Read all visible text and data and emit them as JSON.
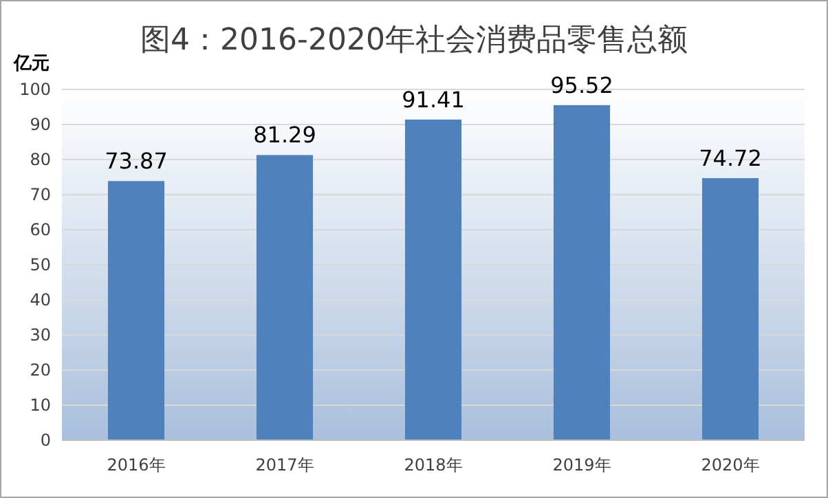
{
  "chart_data": {
    "type": "bar",
    "title": "图4：2016-2020年社会消费品零售总额",
    "ylabel": "亿元",
    "categories": [
      "2016年",
      "2017年",
      "2018年",
      "2019年",
      "2020年"
    ],
    "values": [
      73.87,
      81.29,
      91.41,
      95.52,
      74.72
    ],
    "color": "#4f81bd",
    "ylim": [
      0,
      100
    ],
    "yticks": [
      0,
      10,
      20,
      30,
      40,
      50,
      60,
      70,
      80,
      90,
      100
    ],
    "grid": true,
    "data_labels": true
  }
}
